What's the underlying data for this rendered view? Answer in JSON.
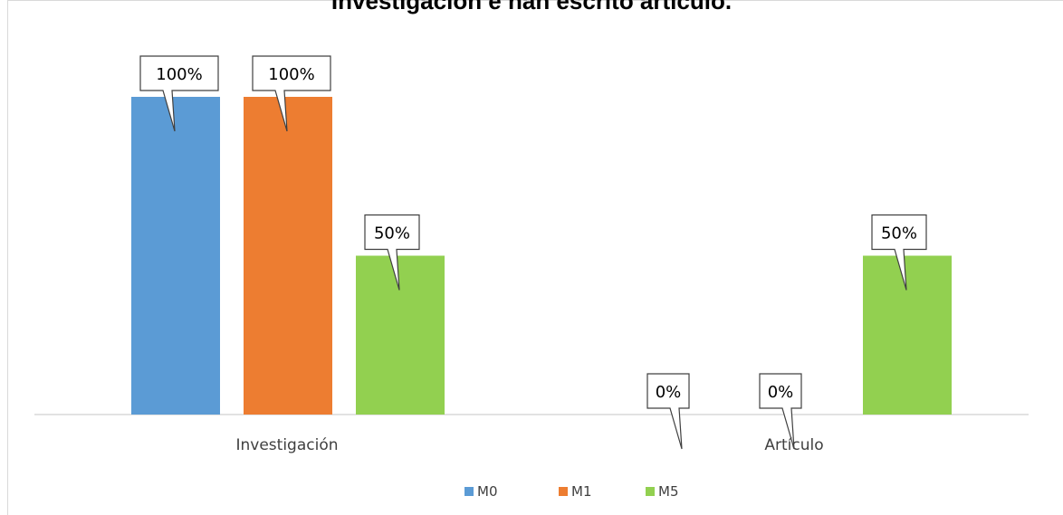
{
  "chart_data": {
    "type": "bar",
    "title": "Investigación e han escrito artículo.",
    "categories": [
      "Investigación",
      "Artículo"
    ],
    "series": [
      {
        "name": "M0",
        "values": [
          100,
          0
        ],
        "labels": [
          "100%",
          "0%"
        ],
        "color": "#5B9BD5"
      },
      {
        "name": "M1",
        "values": [
          100,
          0
        ],
        "labels": [
          "100%",
          "0%"
        ],
        "color": "#ED7D31"
      },
      {
        "name": "M5",
        "values": [
          50,
          50
        ],
        "labels": [
          "50%",
          "50%"
        ],
        "color": "#92D050"
      }
    ],
    "ylim": [
      0,
      100
    ],
    "grid": false,
    "legend_position": "bottom",
    "xlabel": "",
    "ylabel": ""
  }
}
